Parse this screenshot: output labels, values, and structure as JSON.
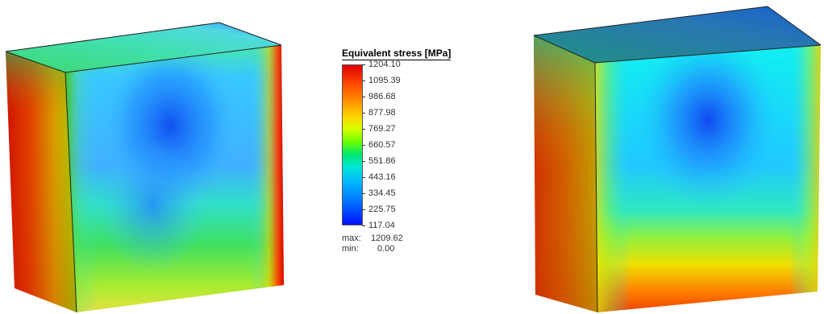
{
  "legend": {
    "title": "Equivalent stress [MPa]",
    "ticks": [
      "1204.10",
      "1095.39",
      "986.68",
      "877.98",
      "769.27",
      "660.57",
      "551.86",
      "443.16",
      "334.45",
      "225.75",
      "117.04"
    ],
    "max_label": "max:",
    "max_value": "1209.62",
    "min_label": "min:",
    "min_value": "0.00"
  },
  "colors": {
    "high": "#e00000",
    "mid": "#6cff00",
    "low": "#0010ff",
    "outline": "#222222"
  }
}
